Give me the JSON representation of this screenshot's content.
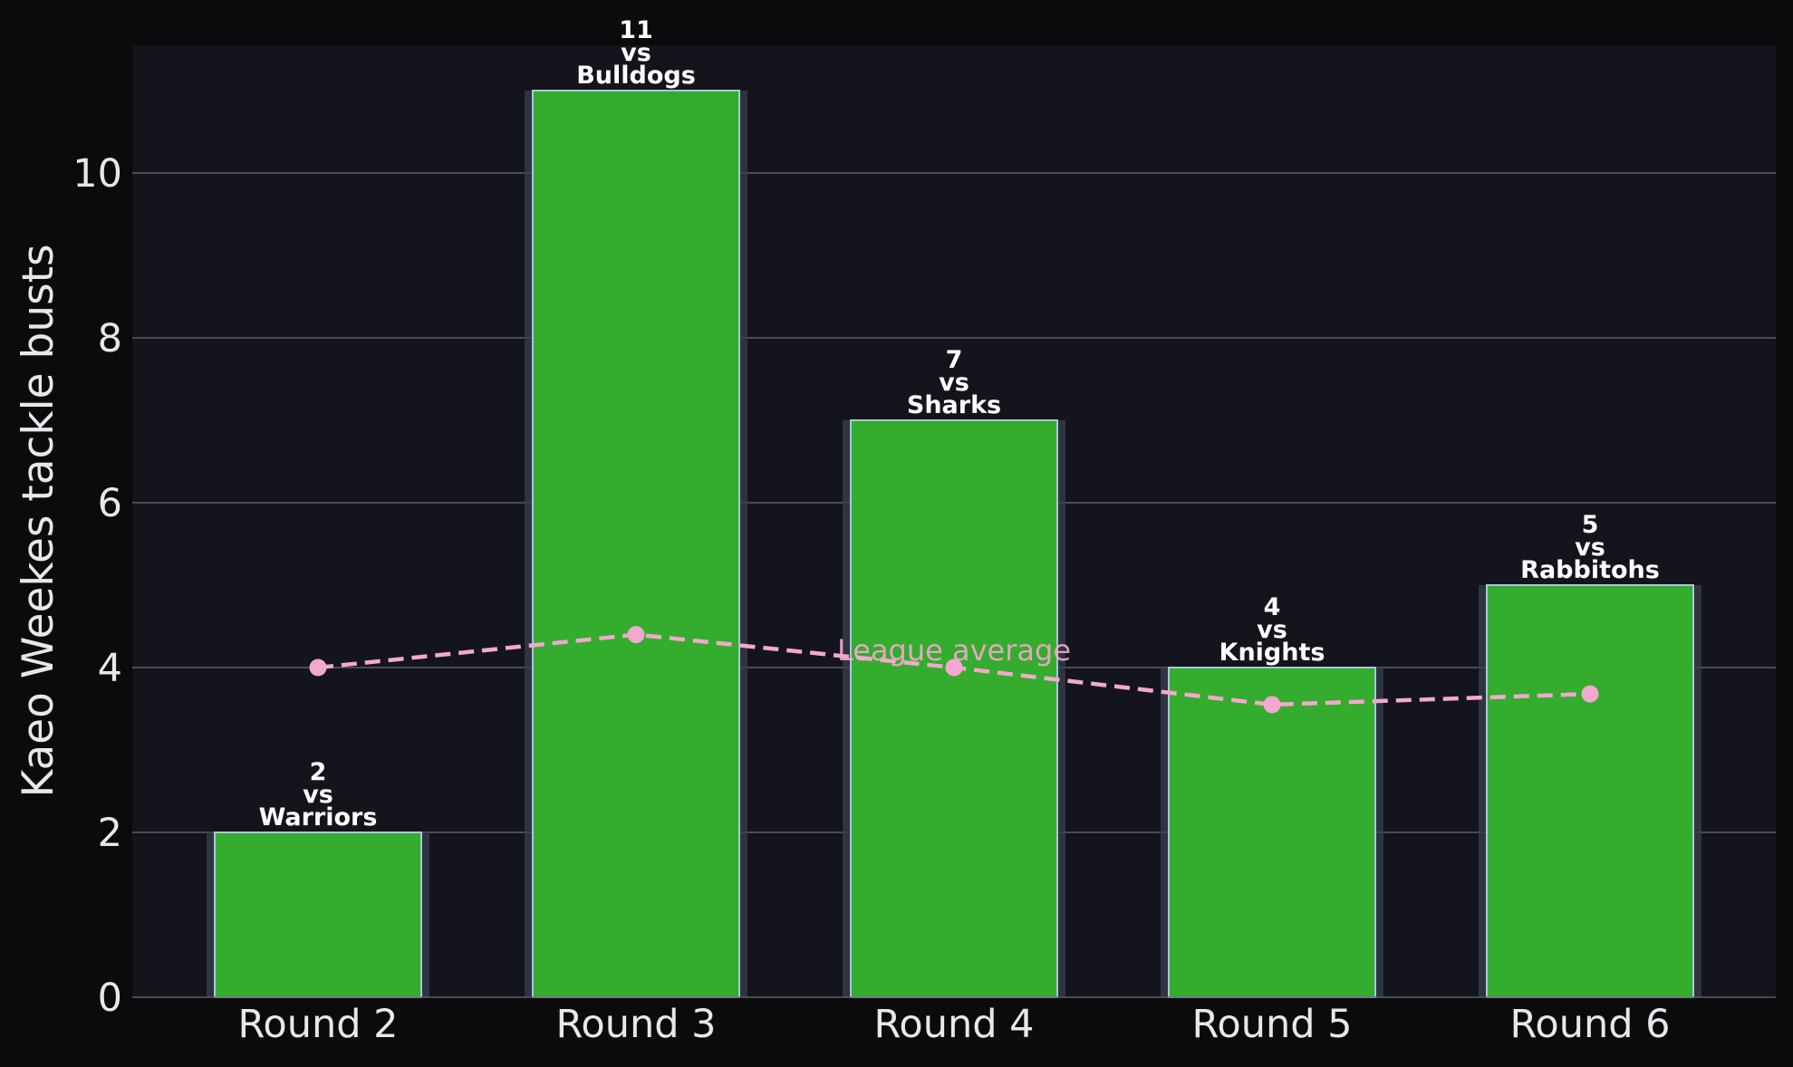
{
  "chart_data": {
    "type": "bar",
    "categories": [
      "Round 2",
      "Round 3",
      "Round 4",
      "Round 5",
      "Round 6"
    ],
    "opponents": [
      "Warriors",
      "Bulldogs",
      "Sharks",
      "Knights",
      "Rabbitohs"
    ],
    "values": [
      2,
      11,
      7,
      4,
      5
    ],
    "bar_label_connector": "vs",
    "line_series": {
      "label": "League average",
      "values": [
        4.0,
        4.4,
        4.0,
        3.55,
        3.68
      ]
    },
    "title": "",
    "xlabel": "",
    "ylabel": "Kaeo Weekes tackle busts",
    "ylim": [
      0,
      11.55
    ],
    "yticks": [
      0,
      2,
      4,
      6,
      8,
      10
    ],
    "grid": true,
    "colors": {
      "page_bg": "#0b0b0e",
      "plot_bg": "#13141c",
      "bar_fill": "#34ac2e",
      "bar_edge": "#a9c7d9",
      "bar_shadow": "#3a3f4d",
      "line": "#f4a8cf",
      "grid": "#5c5e66",
      "text": "#e8e8ec",
      "label_text": "#ffffff"
    }
  }
}
